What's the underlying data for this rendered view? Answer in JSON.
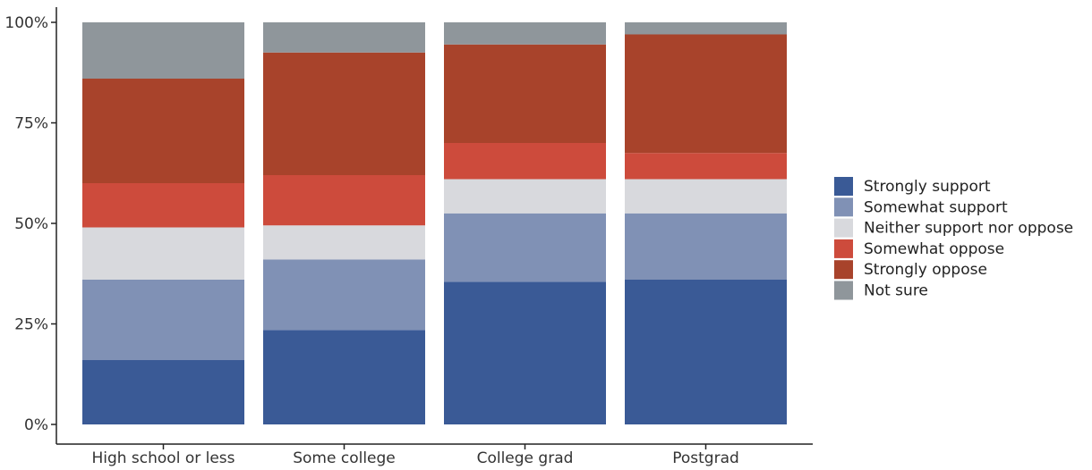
{
  "chart_data": {
    "type": "bar",
    "stacked": true,
    "categories": [
      "High school or less",
      "Some college",
      "College grad",
      "Postgrad"
    ],
    "series": [
      {
        "name": "Strongly support",
        "color": "#3a5a96",
        "values": [
          16,
          23.5,
          35.5,
          36
        ]
      },
      {
        "name": "Somewhat support",
        "color": "#8091b5",
        "values": [
          20,
          17.5,
          17,
          16.5
        ]
      },
      {
        "name": "Neither support nor oppose",
        "color": "#d8d9dd",
        "values": [
          13,
          8.5,
          8.5,
          8.5
        ]
      },
      {
        "name": "Somewhat oppose",
        "color": "#cd4b3c",
        "values": [
          11,
          12.5,
          9,
          6.5
        ]
      },
      {
        "name": "Strongly oppose",
        "color": "#a8432b",
        "values": [
          26,
          30.5,
          24.5,
          29.5
        ]
      },
      {
        "name": "Not sure",
        "color": "#8f969b",
        "values": [
          14,
          7.5,
          5.5,
          3
        ]
      }
    ],
    "ylim": [
      0,
      100
    ],
    "yticks": [
      "0%",
      "25%",
      "50%",
      "75%",
      "100%"
    ],
    "ytick_values": [
      0,
      25,
      50,
      75,
      100
    ],
    "grid": false,
    "legend_position": "right"
  }
}
